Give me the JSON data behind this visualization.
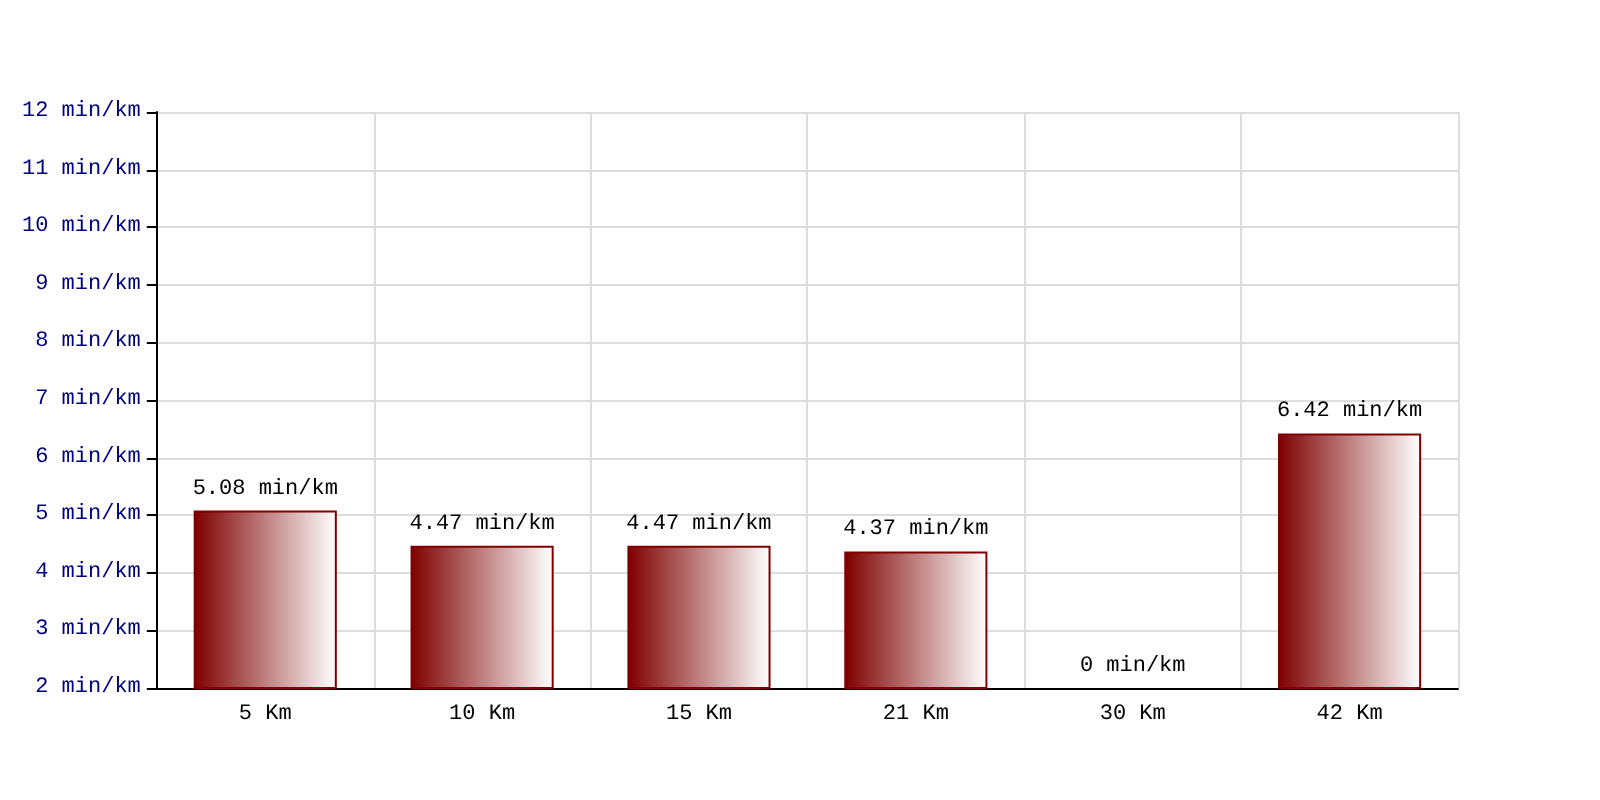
{
  "chart_data": {
    "type": "bar",
    "categories": [
      "5 Km",
      "10 Km",
      "15 Km",
      "21 Km",
      "30 Km",
      "42 Km"
    ],
    "values": [
      5.08,
      4.47,
      4.47,
      4.37,
      null,
      6.42
    ],
    "value_labels": [
      "5.08 min/km",
      "4.47 min/km",
      "4.47 min/km",
      "4.37 min/km",
      "0 min/km",
      "6.42 min/km"
    ],
    "color": "#7f0000",
    "ylim": [
      2,
      12
    ],
    "yticks": [
      {
        "value": 2,
        "label": "2 min/km"
      },
      {
        "value": 3,
        "label": "3 min/km"
      },
      {
        "value": 4,
        "label": "4 min/km"
      },
      {
        "value": 5,
        "label": "5 min/km"
      },
      {
        "value": 6,
        "label": "6 min/km"
      },
      {
        "value": 7,
        "label": "7 min/km"
      },
      {
        "value": 8,
        "label": "8 min/km"
      },
      {
        "value": 9,
        "label": "9 min/km"
      },
      {
        "value": 10,
        "label": "10 min/km"
      },
      {
        "value": 11,
        "label": "11 min/km"
      },
      {
        "value": 12,
        "label": "12 min/km"
      }
    ],
    "grid": true
  }
}
